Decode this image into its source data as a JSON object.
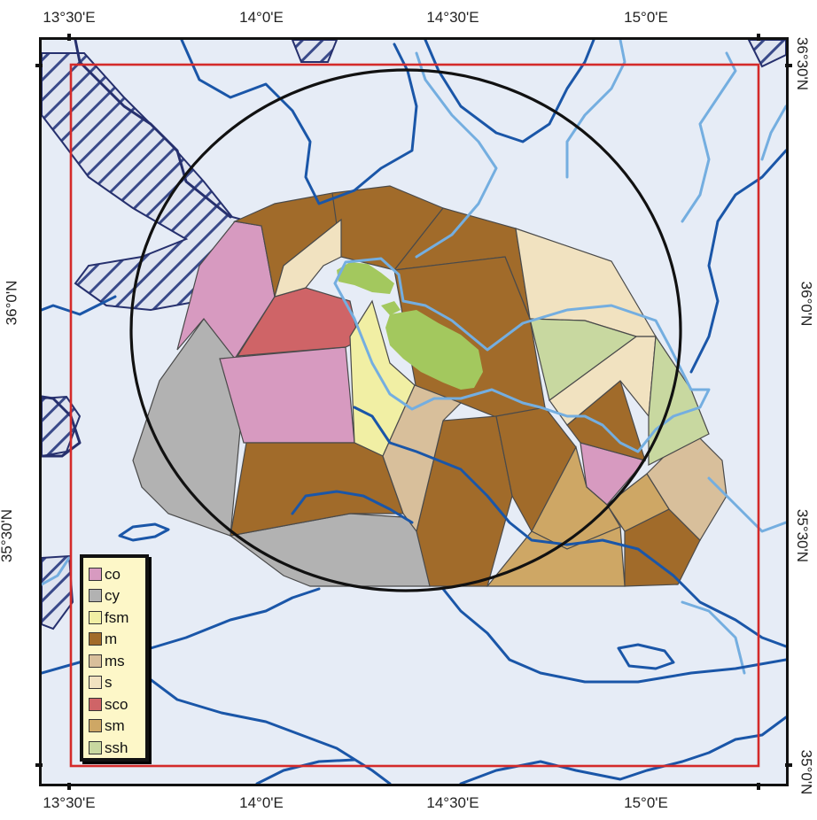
{
  "axes": {
    "top_ticks": [
      "13°30'E",
      "14°0'E",
      "14°30'E",
      "15°0'E"
    ],
    "bottom_ticks": [
      "13°30'E",
      "14°0'E",
      "14°30'E",
      "15°0'E"
    ],
    "left_ticks": [
      "36°0'N",
      "35°30'N"
    ],
    "right_ticks": [
      "36°30'N",
      "36°0'N",
      "35°30'N",
      "35°0'N"
    ]
  },
  "colors": {
    "sea": "#e6ecf6",
    "frame": "#111111",
    "study_area_box": "#d42a2a",
    "buffer_circle": "#111111",
    "deep_contour": "#1a56a8",
    "shallow_contour": "#74aee0",
    "dark_contour": "#26306e",
    "hatch": "#3a4a8a",
    "island": "#a3c85e"
  },
  "legend": {
    "items": [
      {
        "label": "co",
        "color": "#d79ac0"
      },
      {
        "label": "cy",
        "color": "#b2b2b2"
      },
      {
        "label": "fsm",
        "color": "#f1efa4"
      },
      {
        "label": "m",
        "color": "#a16b2a"
      },
      {
        "label": "ms",
        "color": "#d8bf9b"
      },
      {
        "label": "s",
        "color": "#f1e2c0"
      },
      {
        "label": "sco",
        "color": "#cf6467"
      },
      {
        "label": "sm",
        "color": "#cea765"
      },
      {
        "label": "ssh",
        "color": "#c8d8a0"
      }
    ]
  }
}
